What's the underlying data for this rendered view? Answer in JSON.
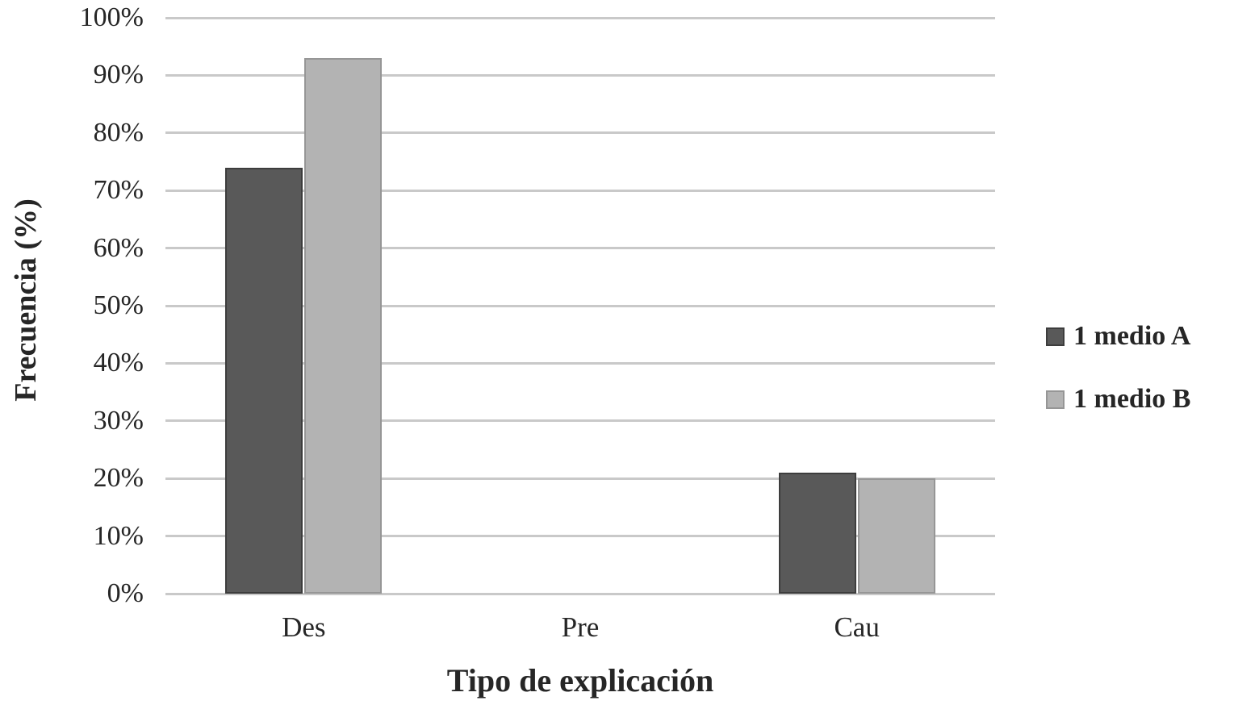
{
  "chart_data": {
    "type": "bar",
    "title": "",
    "xlabel": "Tipo de explicación",
    "ylabel": "Frecuencia (%)",
    "categories": [
      "Des",
      "Pre",
      "Cau"
    ],
    "series": [
      {
        "name": "1 medio A",
        "color": "#595959",
        "border_color": "#3d3d3d",
        "values": [
          74,
          0,
          21
        ]
      },
      {
        "name": "1 medio B",
        "color": "#b3b3b3",
        "border_color": "#969696",
        "values": [
          93,
          0,
          20
        ]
      }
    ],
    "ylim": [
      0,
      100
    ],
    "ytick_step": 10,
    "ytick_labels": [
      "0%",
      "10%",
      "20%",
      "30%",
      "40%",
      "50%",
      "60%",
      "70%",
      "80%",
      "90%",
      "100%"
    ],
    "grid": true,
    "gridline_color": "#c9c9c9",
    "background_color": "#ffffff",
    "text_color": "#262626",
    "legend_position": "right"
  }
}
